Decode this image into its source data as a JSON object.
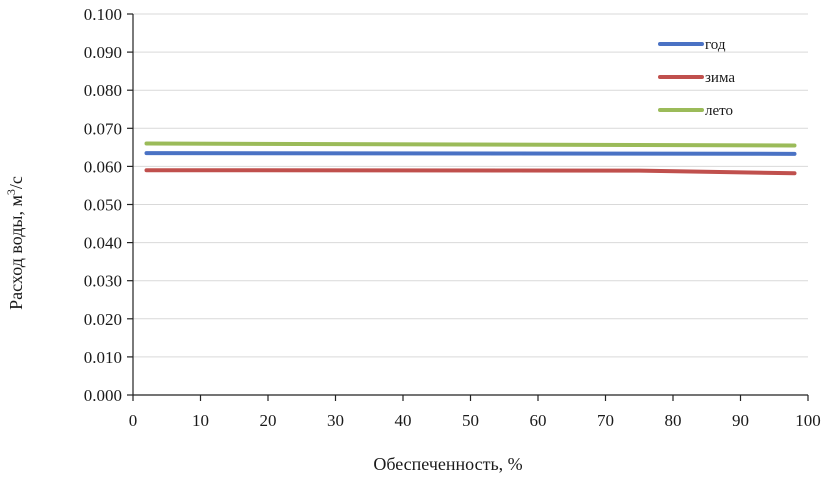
{
  "chart_data": {
    "type": "line",
    "title": "",
    "xlabel": "Обеспеченность, %",
    "ylabel_main": "Расход воды, м",
    "ylabel_sup": "3",
    "ylabel_tail": "/с",
    "xlim": [
      0,
      100
    ],
    "ylim": [
      0,
      0.1
    ],
    "x_ticks": [
      "0",
      "10",
      "20",
      "30",
      "40",
      "50",
      "60",
      "70",
      "80",
      "90",
      "100"
    ],
    "x_tick_values": [
      0,
      10,
      20,
      30,
      40,
      50,
      60,
      70,
      80,
      90,
      100
    ],
    "y_ticks": [
      "0.000",
      "0.010",
      "0.020",
      "0.030",
      "0.040",
      "0.050",
      "0.060",
      "0.070",
      "0.080",
      "0.090",
      "0.100"
    ],
    "y_tick_values": [
      0,
      0.01,
      0.02,
      0.03,
      0.04,
      0.05,
      0.06,
      0.07,
      0.08,
      0.09,
      0.1
    ],
    "grid": true,
    "legend_position": "top-right",
    "series": [
      {
        "name": "год",
        "color": "#4a72c4",
        "x": [
          2,
          98
        ],
        "y": [
          0.0635,
          0.0633
        ]
      },
      {
        "name": "зима",
        "color": "#c0504d",
        "x": [
          2,
          75,
          98
        ],
        "y": [
          0.059,
          0.0589,
          0.0582
        ]
      },
      {
        "name": "лето",
        "color": "#9bbb59",
        "x": [
          2,
          98
        ],
        "y": [
          0.066,
          0.0655
        ]
      }
    ]
  }
}
